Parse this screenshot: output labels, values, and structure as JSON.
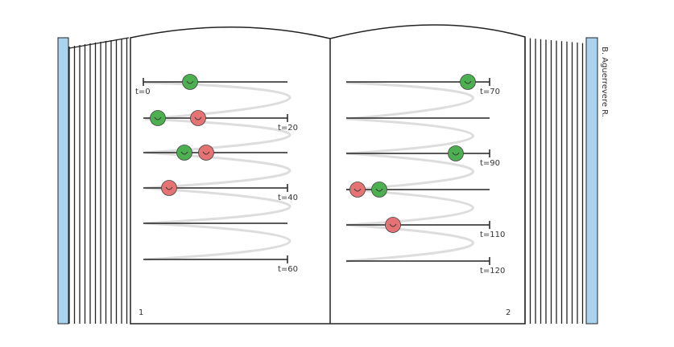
{
  "left_page": {
    "number": "1",
    "labels": [
      "t=0",
      "t=20",
      "t=40",
      "t=60"
    ]
  },
  "right_page": {
    "number": "2",
    "labels": [
      "t=70",
      "t=90",
      "t=110",
      "t=120"
    ]
  },
  "author": "B. Aguerrevere R."
}
